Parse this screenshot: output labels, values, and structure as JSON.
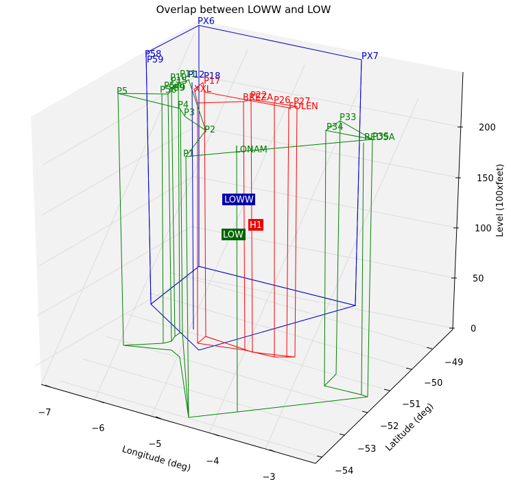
{
  "chart_data": {
    "type": "line",
    "title": "Overlap between LOWW and LOW",
    "xlabel": "Longitude (deg)",
    "ylabel": "Latitude (deg)",
    "zlabel": "Level (100xfeet)",
    "x_ticks": [
      "−7",
      "−6",
      "−5",
      "−4",
      "−3"
    ],
    "y_ticks": [
      "−49",
      "−50",
      "−51",
      "−52",
      "−53",
      "−54"
    ],
    "z_ticks": [
      "0",
      "50",
      "100",
      "150",
      "200"
    ],
    "grid": true,
    "colors": {
      "LOWW": "#0000cc",
      "H1": "#ff0000",
      "LOW": "#008000",
      "grid": "#dcdcdc",
      "pane": "#f2f2f2"
    },
    "series": [
      {
        "name": "LOWW",
        "color": "#0000cc",
        "points": [
          "PX6",
          "PX7",
          "P58",
          "P59"
        ]
      },
      {
        "name": "H1",
        "color": "#ff0000",
        "points": [
          "P18",
          "P17",
          "XXL",
          "BREZA",
          "P22",
          "P26",
          "P27",
          "FOLEN"
        ]
      },
      {
        "name": "LOW",
        "color": "#008000",
        "points": [
          "P1",
          "P2",
          "P3",
          "P4",
          "P5",
          "P9",
          "P10",
          "P11",
          "P12",
          "P15",
          "P33",
          "P34",
          "P35",
          "P56",
          "P57",
          "P59",
          "LONAM",
          "REDSA",
          "P18"
        ]
      }
    ],
    "labels": {
      "blue": [
        "PX6",
        "PX7",
        "P58",
        "P59",
        "P18",
        "P12"
      ],
      "red": [
        "P17",
        "XXL",
        "BREZA",
        "P22",
        "P26",
        "P27",
        "FOLEN"
      ],
      "green": [
        "P5",
        "P56",
        "P57",
        "P59",
        "P10",
        "P11",
        "P9",
        "P15",
        "P4",
        "P3",
        "P2",
        "P1",
        "LONAM",
        "P33",
        "P34",
        "REDSA",
        "P35"
      ]
    },
    "boxes": [
      {
        "text": "LOWW",
        "bg": "#0000aa"
      },
      {
        "text": "H1",
        "bg": "#ee0000"
      },
      {
        "text": "LOW",
        "bg": "#006400"
      }
    ]
  }
}
